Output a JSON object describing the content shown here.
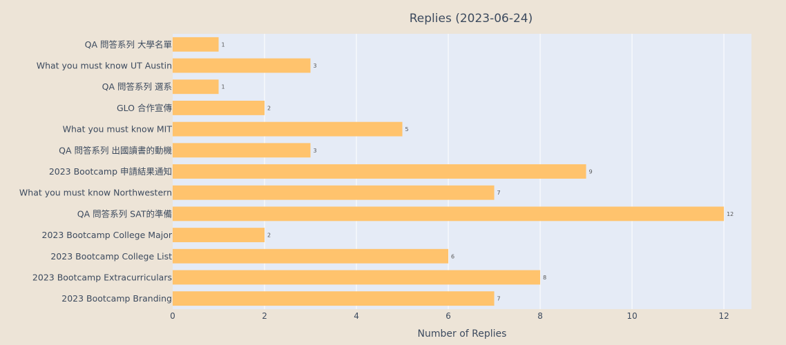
{
  "chart_data": {
    "type": "bar",
    "orientation": "horizontal",
    "title": "Replies (2023-06-24)",
    "xlabel": "Number of Replies",
    "ylabel": "",
    "xlim": [
      0,
      12.6
    ],
    "xticks": [
      0,
      2,
      4,
      6,
      8,
      10,
      12
    ],
    "grid": true,
    "legend": "none",
    "categories": [
      "QA 問答系列 大學名單",
      "What you must know UT Austin",
      "QA 問答系列 選系",
      "GLO 合作宣傳",
      "What you must know MIT",
      "QA 問答系列 出國讀書的動機",
      "2023 Bootcamp 申請結果通知",
      "What you must know Northwestern",
      "QA 問答系列 SAT的準備",
      "2023 Bootcamp College Major",
      "2023 Bootcamp College List",
      "2023 Bootcamp Extracurriculars",
      "2023 Bootcamp Branding"
    ],
    "values": [
      1,
      3,
      1,
      2,
      5,
      3,
      9,
      7,
      12,
      2,
      6,
      8,
      7
    ],
    "colors": {
      "bar": "#ffc36d",
      "plot_bg": "#e5ebf6",
      "paper_bg": "#ede4d7",
      "grid": "#ffffff",
      "text": "#3c4a5e"
    }
  }
}
